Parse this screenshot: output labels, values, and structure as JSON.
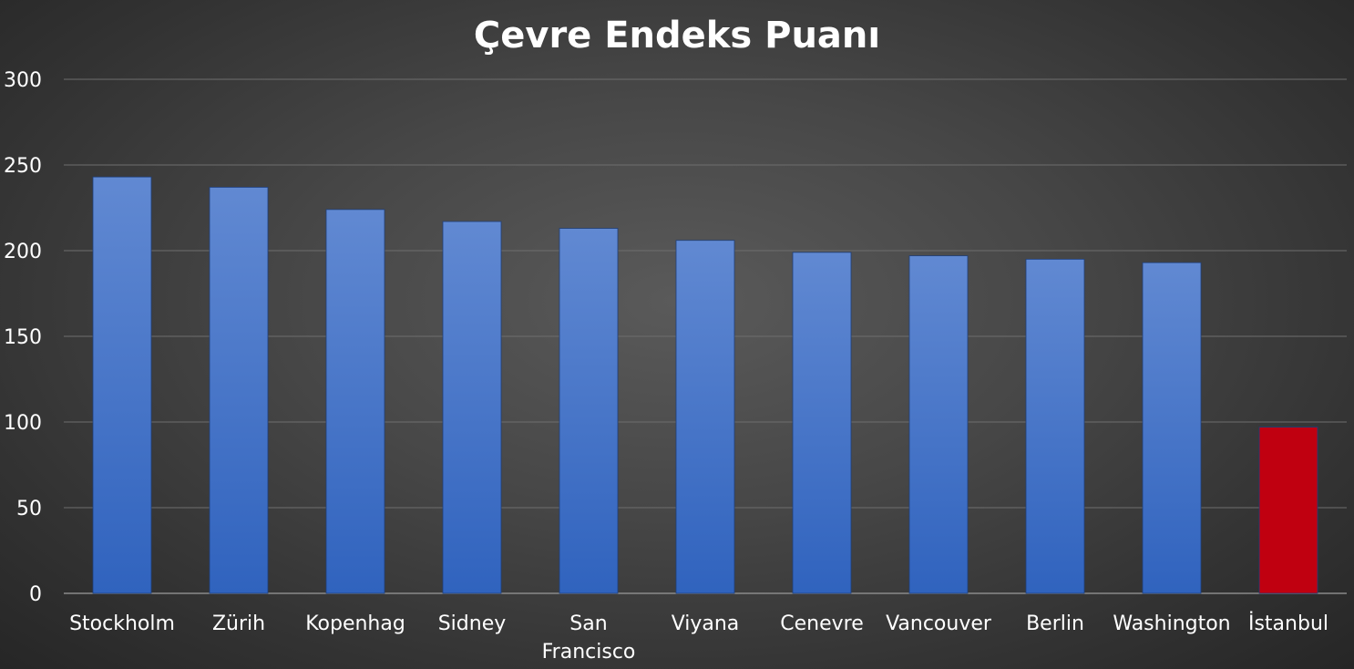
{
  "chart_data": {
    "type": "bar",
    "title": "Çevre Endeks Puanı",
    "xlabel": "",
    "ylabel": "",
    "categories": [
      "Stockholm",
      "Zürih",
      "Kopenhag",
      "Sidney",
      "San Francisco",
      "Viyana",
      "Cenevre",
      "Vancouver",
      "Berlin",
      "Washington",
      "İstanbul"
    ],
    "values": [
      243,
      237,
      224,
      217,
      213,
      206,
      199,
      197,
      195,
      193,
      97
    ],
    "ylim": [
      0,
      300
    ],
    "yticks": [
      0,
      50,
      100,
      150,
      200,
      250,
      300
    ],
    "grid": true,
    "legend": "none",
    "colors": {
      "bar_top": "#6189d2",
      "bar_bottom": "#3063be",
      "highlight": "#c00010",
      "highlight_index": 10
    }
  }
}
